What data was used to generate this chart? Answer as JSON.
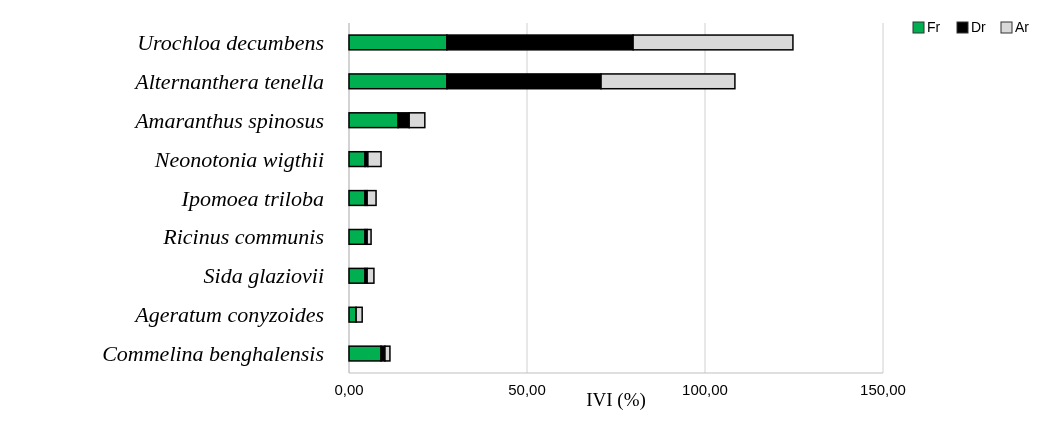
{
  "chart_data": {
    "type": "bar",
    "orientation": "horizontal",
    "stacked": true,
    "xlabel": "IVI (%)",
    "categories": [
      "Urochloa decumbens",
      "Alternanthera tenella",
      "Amaranthus spinosus",
      "Neonotonia wigthii",
      "Ipomoea triloba",
      "Ricinus communis",
      "Sida glaziovii",
      "Ageratum conyzoides",
      "Commelina benghalensis"
    ],
    "series": [
      {
        "name": "Fr",
        "color": "#00b050",
        "values": [
          27.5,
          27.5,
          13.8,
          4.5,
          4.5,
          4.5,
          4.5,
          2.0,
          9.0
        ]
      },
      {
        "name": "Dr",
        "color": "#000000",
        "values": [
          52.3,
          43.3,
          3.1,
          0.8,
          0.6,
          0.6,
          0.6,
          null,
          1.1
        ]
      },
      {
        "name": "Ar",
        "color": "#d9d9d9",
        "values": [
          44.9,
          37.6,
          4.4,
          3.7,
          2.5,
          1.1,
          1.9,
          1.7,
          1.4
        ]
      }
    ],
    "xlim": [
      0,
      150
    ],
    "xticks": [
      {
        "value": 0,
        "label": "0,00"
      },
      {
        "value": 50,
        "label": "50,00"
      },
      {
        "value": 100,
        "label": "100,00"
      },
      {
        "value": 150,
        "label": "150,00"
      }
    ],
    "grid": "x",
    "legend": "top right"
  }
}
